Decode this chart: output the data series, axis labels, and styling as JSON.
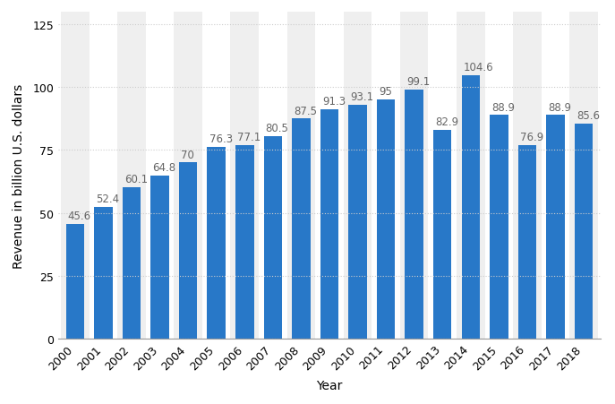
{
  "years": [
    2000,
    2001,
    2002,
    2003,
    2004,
    2005,
    2006,
    2007,
    2008,
    2009,
    2010,
    2011,
    2012,
    2013,
    2014,
    2015,
    2016,
    2017,
    2018
  ],
  "values": [
    45.6,
    52.4,
    60.1,
    64.8,
    70,
    76.3,
    77.1,
    80.5,
    87.5,
    91.3,
    93.1,
    95,
    99.1,
    82.9,
    104.6,
    88.9,
    76.9,
    88.9,
    85.6
  ],
  "bar_color": "#2878c8",
  "xlabel": "Year",
  "ylabel": "Revenue in billion U.S. dollars",
  "ylim": [
    0,
    130
  ],
  "yticks": [
    0,
    25,
    50,
    75,
    100,
    125
  ],
  "background_color": "#ffffff",
  "plot_bg_color": "#ffffff",
  "stripe_color": "#efefef",
  "grid_color": "#cccccc",
  "axis_label_fontsize": 10,
  "tick_fontsize": 9,
  "bar_width": 0.65,
  "annotation_fontsize": 8.5,
  "annotation_color": "#666666"
}
